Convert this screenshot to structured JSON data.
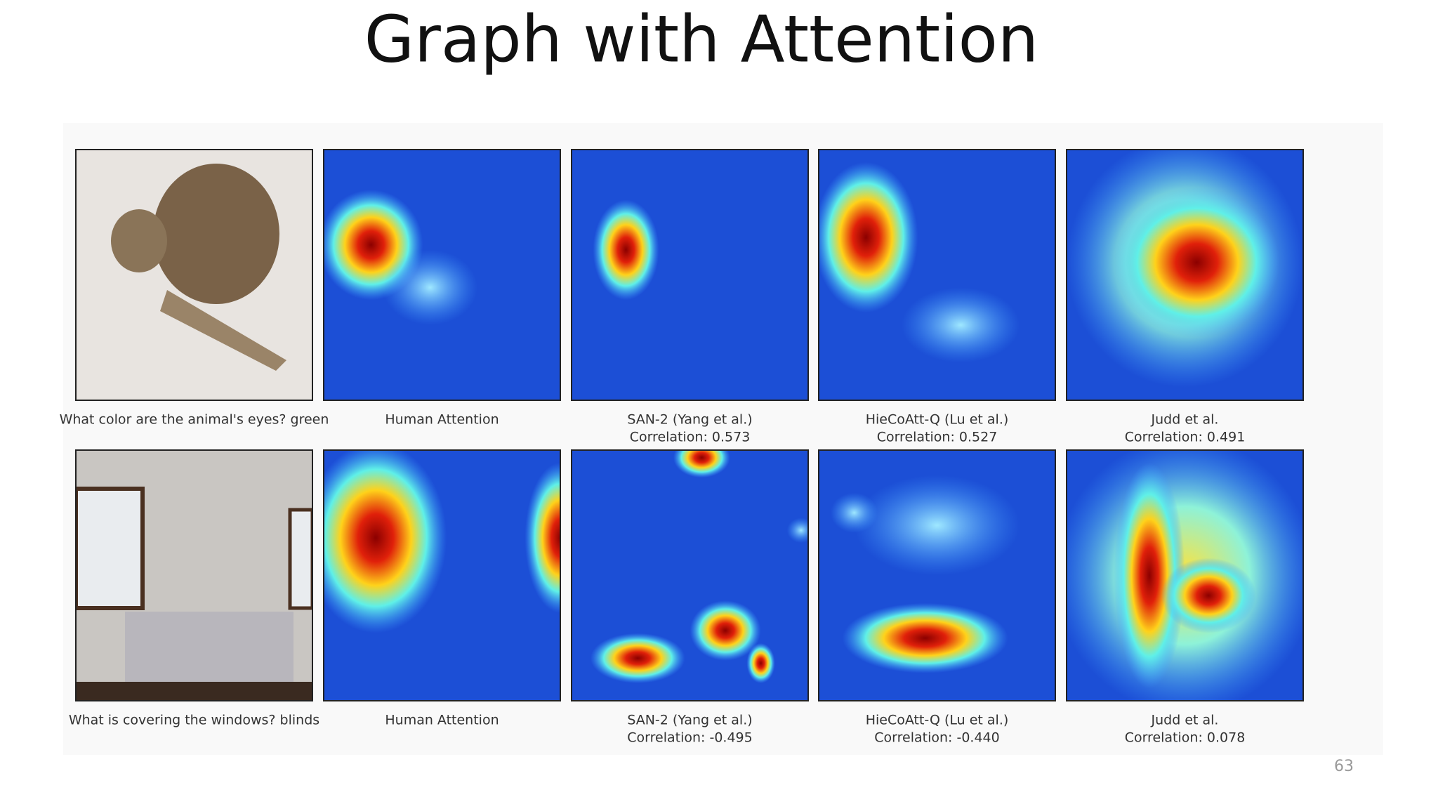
{
  "title": "Graph with Attention",
  "rows": [
    {
      "panels": [
        {
          "caption": [
            "What color are the animal's eyes? green"
          ]
        },
        {
          "caption": [
            "Human Attention"
          ]
        },
        {
          "caption": [
            "SAN-2 (Yang et al.)",
            "Correlation: 0.573"
          ]
        },
        {
          "caption": [
            "HieCoAtt-Q (Lu et al.)",
            "Correlation: 0.527"
          ]
        },
        {
          "caption": [
            "Judd et al.",
            "Correlation: 0.491"
          ]
        }
      ]
    },
    {
      "panels": [
        {
          "caption": [
            "What is covering the windows? blinds"
          ]
        },
        {
          "caption": [
            "Human Attention"
          ]
        },
        {
          "caption": [
            "SAN-2 (Yang et al.)",
            "Correlation: -0.495"
          ]
        },
        {
          "caption": [
            "HieCoAtt-Q (Lu et al.)",
            "Correlation: -0.440"
          ]
        },
        {
          "caption": [
            "Judd et al.",
            "Correlation: 0.078"
          ]
        }
      ]
    }
  ],
  "page_number": "63"
}
